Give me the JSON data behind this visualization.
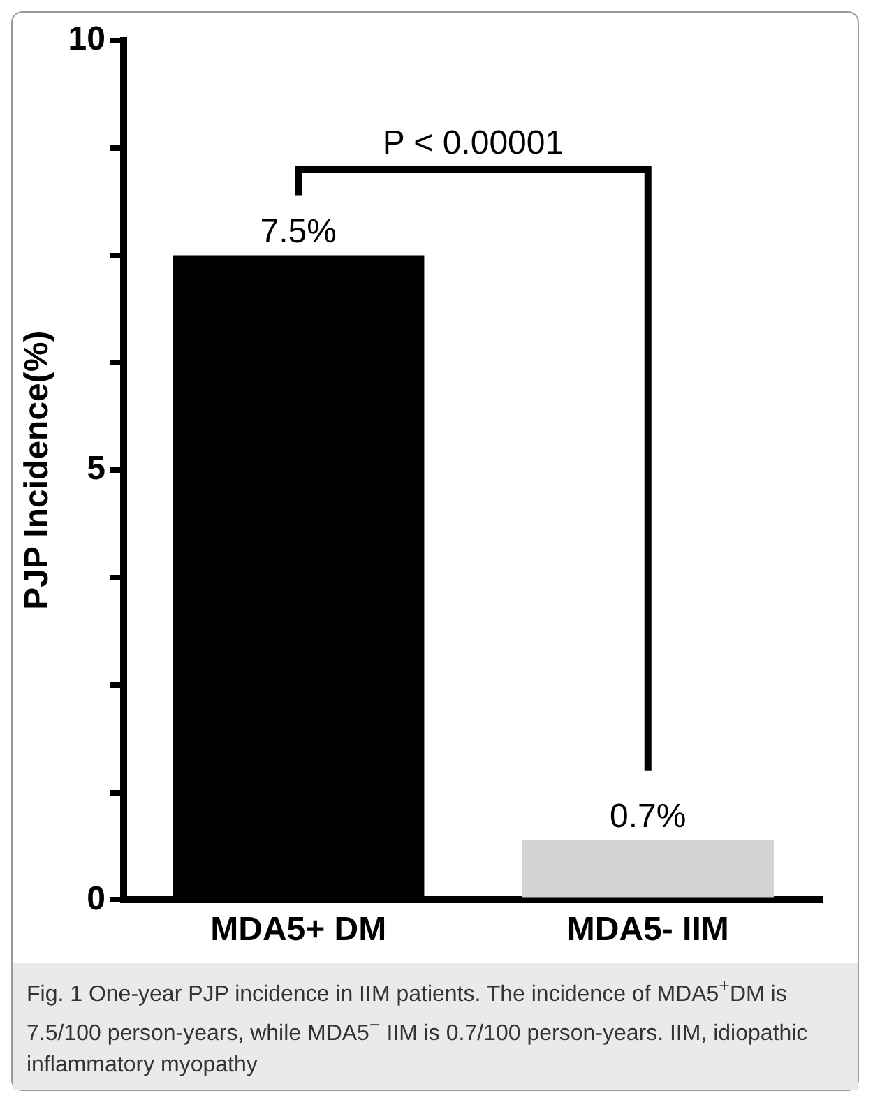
{
  "chart_data": {
    "type": "bar",
    "ylabel": "PJP Incidence(%)",
    "categories": [
      "MDA5+ DM",
      "MDA5- IIM"
    ],
    "values": [
      7.5,
      0.7
    ],
    "colors": [
      "#000000",
      "#d3d3d3"
    ],
    "value_labels": [
      "7.5%",
      "0.7%"
    ],
    "ylim": [
      0,
      10
    ],
    "yticks": [
      0,
      {
        "value": 1.25,
        "label": null
      },
      {
        "value": 2.5,
        "label": null
      },
      {
        "value": 3.75,
        "label": null
      },
      5,
      {
        "value": 6.25,
        "label": null
      },
      {
        "value": 7.5,
        "label": null
      },
      {
        "value": 8.75,
        "label": null
      },
      10
    ],
    "grid": false,
    "legend": false,
    "annotations": [
      "P < 0.00001",
      "Fig. 1 One-year PJP incidence in IIM patients. The incidence of MDA5$^{+}$DM is 7.5/100 person-years, while MDA5$^{−}$ IIM is 0.7/100 person-years. IIM, idiopathic inflammatory myopathy"
    ]
  }
}
